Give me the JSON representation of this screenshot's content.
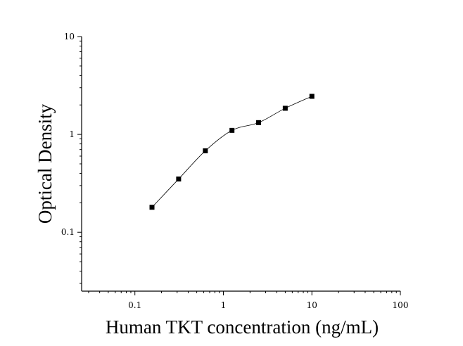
{
  "chart_data": {
    "type": "scatter",
    "title": "",
    "xlabel": "Human TKT concentration (ng/mL)",
    "ylabel": "Optical Density",
    "xscale": "log",
    "yscale": "log",
    "xlim": [
      0.025,
      100
    ],
    "ylim": [
      0.025,
      10
    ],
    "x_tick_labels": [
      "0.1",
      "1",
      "10",
      "100"
    ],
    "y_tick_labels": [
      "0.1",
      "1",
      "10"
    ],
    "grid": false,
    "legend": "none",
    "series": [
      {
        "points": [
          {
            "x": 0.156,
            "y": 0.18
          },
          {
            "x": 0.312,
            "y": 0.35
          },
          {
            "x": 0.625,
            "y": 0.68
          },
          {
            "x": 1.25,
            "y": 1.1
          },
          {
            "x": 2.5,
            "y": 1.32
          },
          {
            "x": 5,
            "y": 1.85
          },
          {
            "x": 10,
            "y": 2.45
          }
        ],
        "fit_line": true
      }
    ]
  }
}
